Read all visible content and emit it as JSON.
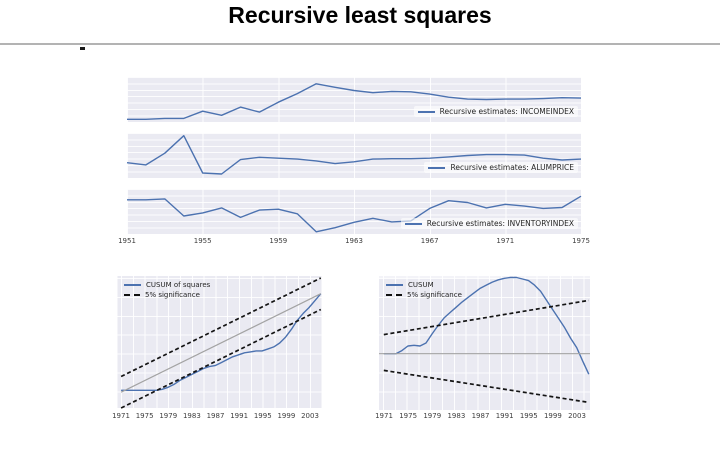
{
  "page": {
    "title": "Recursive least squares"
  },
  "colors": {
    "line_blue": "#4c72b0",
    "significance_black": "#141414",
    "reference_gray": "#a3a3a3",
    "panel_background": "#eaeaf2",
    "grid_line": "#ffffff",
    "tick_text": "#3d3d3d"
  },
  "chart_data": [
    {
      "id": "recursive-incomeindex",
      "type": "line",
      "title": "",
      "xlabel": "",
      "ylabel": "",
      "y_units": "normalized (no y-axis labels shown)",
      "xlim": [
        1951,
        1975
      ],
      "ylim": [
        0,
        1
      ],
      "x": [
        1951,
        1952,
        1953,
        1954,
        1955,
        1956,
        1957,
        1958,
        1959,
        1960,
        1961,
        1962,
        1963,
        1964,
        1965,
        1966,
        1967,
        1968,
        1969,
        1970,
        1971,
        1972,
        1973,
        1974,
        1975
      ],
      "series": [
        {
          "name": "Recursive estimates: INCOMEINDEX",
          "style": "data",
          "values": [
            0.06,
            0.06,
            0.08,
            0.08,
            0.24,
            0.15,
            0.33,
            0.22,
            0.44,
            0.63,
            0.85,
            0.77,
            0.7,
            0.65,
            0.68,
            0.67,
            0.62,
            0.55,
            0.51,
            0.5,
            0.51,
            0.51,
            0.52,
            0.54,
            0.53
          ]
        }
      ],
      "legend_position": "lower right"
    },
    {
      "id": "recursive-alumprice",
      "type": "line",
      "title": "",
      "xlabel": "",
      "ylabel": "",
      "y_units": "normalized (no y-axis labels shown)",
      "xlim": [
        1951,
        1975
      ],
      "ylim": [
        0,
        1
      ],
      "x": [
        1951,
        1952,
        1953,
        1954,
        1955,
        1956,
        1957,
        1958,
        1959,
        1960,
        1961,
        1962,
        1963,
        1964,
        1965,
        1966,
        1967,
        1968,
        1969,
        1970,
        1971,
        1972,
        1973,
        1974,
        1975
      ],
      "series": [
        {
          "name": "Recursive estimates: ALUMPRICE",
          "style": "data",
          "values": [
            0.34,
            0.29,
            0.55,
            0.94,
            0.11,
            0.09,
            0.41,
            0.46,
            0.44,
            0.42,
            0.38,
            0.32,
            0.36,
            0.42,
            0.43,
            0.43,
            0.44,
            0.47,
            0.5,
            0.52,
            0.52,
            0.51,
            0.44,
            0.4,
            0.42
          ]
        }
      ],
      "legend_position": "lower right"
    },
    {
      "id": "recursive-inventoryindex",
      "type": "line",
      "title": "",
      "xlabel": "",
      "ylabel": "",
      "y_units": "normalized (no y-axis labels shown)",
      "xlim": [
        1951,
        1975
      ],
      "ylim": [
        0,
        1
      ],
      "x": [
        1951,
        1952,
        1953,
        1954,
        1955,
        1956,
        1957,
        1958,
        1959,
        1960,
        1961,
        1962,
        1963,
        1964,
        1965,
        1966,
        1967,
        1968,
        1969,
        1970,
        1971,
        1972,
        1973,
        1974,
        1975
      ],
      "xticks": [
        "1951",
        "1955",
        "1959",
        "1963",
        "1967",
        "1971",
        "1975"
      ],
      "series": [
        {
          "name": "Recursive estimates: INVENTORYINDEX",
          "style": "data",
          "values": [
            0.76,
            0.76,
            0.78,
            0.4,
            0.47,
            0.58,
            0.37,
            0.53,
            0.55,
            0.45,
            0.05,
            0.14,
            0.26,
            0.35,
            0.27,
            0.29,
            0.57,
            0.74,
            0.7,
            0.58,
            0.66,
            0.62,
            0.57,
            0.59,
            0.84
          ]
        }
      ],
      "legend_position": "lower right"
    },
    {
      "id": "cusum-of-squares",
      "type": "line",
      "title": "",
      "xlabel": "",
      "ylabel": "",
      "xlim": [
        1970.3,
        2005.2
      ],
      "ylim": [
        -0.16,
        1.18
      ],
      "x": [
        1971,
        1972,
        1973,
        1974,
        1975,
        1976,
        1977,
        1978,
        1979,
        1980,
        1981,
        1982,
        1983,
        1984,
        1985,
        1986,
        1987,
        1988,
        1989,
        1990,
        1991,
        1992,
        1993,
        1994,
        1995,
        1996,
        1997,
        1998,
        1999,
        2000,
        2001,
        2002,
        2003,
        2004,
        2005
      ],
      "xticks": [
        "1971",
        "1975",
        "1979",
        "1983",
        "1987",
        "1991",
        "1995",
        "1999",
        "2003"
      ],
      "series": [
        {
          "name": "CUSUM of squares",
          "style": "data",
          "values": [
            0.02,
            0.02,
            0.02,
            0.02,
            0.02,
            0.02,
            0.02,
            0.03,
            0.05,
            0.08,
            0.12,
            0.15,
            0.18,
            0.21,
            0.24,
            0.26,
            0.27,
            0.3,
            0.33,
            0.36,
            0.38,
            0.4,
            0.41,
            0.42,
            0.42,
            0.44,
            0.46,
            0.5,
            0.56,
            0.64,
            0.73,
            0.8,
            0.86,
            0.93,
            1.0
          ]
        },
        {
          "name": "5% significance",
          "style": "significance",
          "x": [
            1971,
            2005
          ],
          "values": [
            0.16,
            1.16
          ]
        },
        {
          "name": "5% significance",
          "style": "significance",
          "x": [
            1971,
            2005
          ],
          "values": [
            -0.16,
            0.84
          ]
        },
        {
          "name": "expected",
          "style": "reference",
          "x": [
            1971,
            2005
          ],
          "values": [
            0,
            1
          ]
        }
      ],
      "legend": [
        "CUSUM of squares",
        "5% significance"
      ],
      "legend_position": "upper left"
    },
    {
      "id": "cusum",
      "type": "line",
      "title": "",
      "xlabel": "",
      "ylabel": "",
      "y_units": "normalized (no y-axis labels shown)",
      "xlim": [
        1970.2,
        2005.2
      ],
      "ylim": [
        -0.74,
        1.02
      ],
      "x": [
        1971,
        1972,
        1973,
        1974,
        1975,
        1976,
        1977,
        1978,
        1979,
        1980,
        1981,
        1982,
        1983,
        1984,
        1985,
        1986,
        1987,
        1988,
        1989,
        1990,
        1991,
        1992,
        1993,
        1994,
        1995,
        1996,
        1997,
        1998,
        1999,
        2000,
        2001,
        2002,
        2003,
        2004,
        2005
      ],
      "xticks": [
        "1971",
        "1975",
        "1979",
        "1983",
        "1987",
        "1991",
        "1995",
        "1999",
        "2003"
      ],
      "series": [
        {
          "name": "CUSUM",
          "style": "data",
          "values": [
            0.0,
            0.0,
            0.0,
            0.04,
            0.1,
            0.11,
            0.1,
            0.14,
            0.26,
            0.37,
            0.47,
            0.54,
            0.61,
            0.68,
            0.74,
            0.8,
            0.86,
            0.9,
            0.94,
            0.97,
            0.99,
            1.0,
            1.0,
            0.98,
            0.96,
            0.9,
            0.82,
            0.7,
            0.58,
            0.46,
            0.34,
            0.2,
            0.08,
            -0.1,
            -0.27
          ]
        },
        {
          "name": "5% significance",
          "style": "significance",
          "x": [
            1971,
            2005
          ],
          "values": [
            0.25,
            0.7
          ]
        },
        {
          "name": "5% significance",
          "style": "significance",
          "x": [
            1971,
            2005
          ],
          "values": [
            -0.22,
            -0.64
          ]
        },
        {
          "name": "zero",
          "style": "reference",
          "x": [
            1970.2,
            2005.2
          ],
          "values": [
            0,
            0
          ]
        }
      ],
      "legend": [
        "CUSUM",
        "5% significance"
      ],
      "legend_position": "upper left"
    }
  ]
}
